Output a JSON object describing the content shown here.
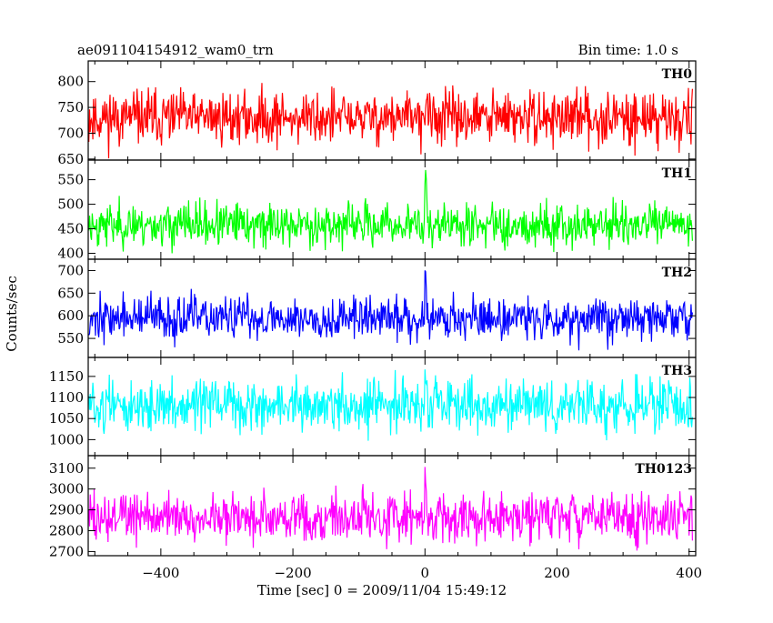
{
  "chart_data": {
    "type": "line",
    "header": {
      "title": "ae091104154912_wam0_trn",
      "bin_time": "Bin time: 1.0 s"
    },
    "xlabel": "Time [sec] 0 = 2009/11/04 15:49:12",
    "ylabel": "Counts/sec",
    "xlim": [
      -510,
      410
    ],
    "x_ticks": [
      -400,
      -200,
      0,
      200,
      400
    ],
    "x_tick_labels": [
      "−400",
      "−200",
      "0",
      "200",
      "400"
    ],
    "panels": [
      {
        "name": "TH0",
        "color": "#ff0000",
        "ylim": [
          648,
          840
        ],
        "y_ticks": [
          650,
          700,
          750,
          800
        ],
        "mean": 730,
        "noise": 26,
        "burst": 30,
        "seed": 11
      },
      {
        "name": "TH1",
        "color": "#00ff00",
        "ylim": [
          388,
          590
        ],
        "y_ticks": [
          400,
          450,
          500,
          550
        ],
        "mean": 458,
        "noise": 22,
        "burst": 130,
        "seed": 23
      },
      {
        "name": "TH2",
        "color": "#0000ff",
        "ylim": [
          508,
          725
        ],
        "y_ticks": [
          550,
          600,
          650,
          700
        ],
        "mean": 595,
        "noise": 24,
        "burst": 120,
        "seed": 37
      },
      {
        "name": "TH3",
        "color": "#00ffff",
        "ylim": [
          962,
          1195
        ],
        "y_ticks": [
          1000,
          1050,
          1100,
          1150
        ],
        "mean": 1080,
        "noise": 30,
        "burst": 60,
        "seed": 51
      },
      {
        "name": "TH0123",
        "color": "#ff00ff",
        "ylim": [
          2680,
          3160
        ],
        "y_ticks": [
          2700,
          2800,
          2900,
          3000,
          3100
        ],
        "mean": 2865,
        "noise": 60,
        "burst": 250,
        "seed": 73
      }
    ]
  }
}
